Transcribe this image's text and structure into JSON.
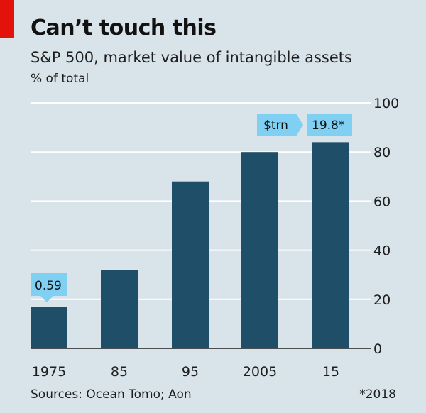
{
  "header": {
    "title": "Can’t touch this",
    "subtitle": "S&P 500, market value of intangible assets",
    "unit": "% of total"
  },
  "footer": {
    "source": "Sources: Ocean Tomo; Aon",
    "footnote": "*2018"
  },
  "colors": {
    "background": "#d8e3ea",
    "bar": "#1f4e68",
    "accent": "#e3120b",
    "label_box": "#7fd0f2",
    "grid": "#ffffff"
  },
  "chart_data": {
    "type": "bar",
    "title": "Can’t touch this",
    "subtitle": "S&P 500, market value of intangible assets",
    "ylabel": "% of total",
    "categories": [
      "1975",
      "85",
      "95",
      "2005",
      "15"
    ],
    "values": [
      17,
      32,
      68,
      80,
      84
    ],
    "ylim": [
      0,
      100
    ],
    "yticks": [
      0,
      20,
      40,
      60,
      80,
      100
    ],
    "grid": true,
    "y_axis_side": "right",
    "annotations": [
      {
        "category": "1975",
        "text": "0.59"
      },
      {
        "category": "15",
        "text": "19.8*"
      }
    ],
    "annotation_unit_label": "$trn"
  }
}
